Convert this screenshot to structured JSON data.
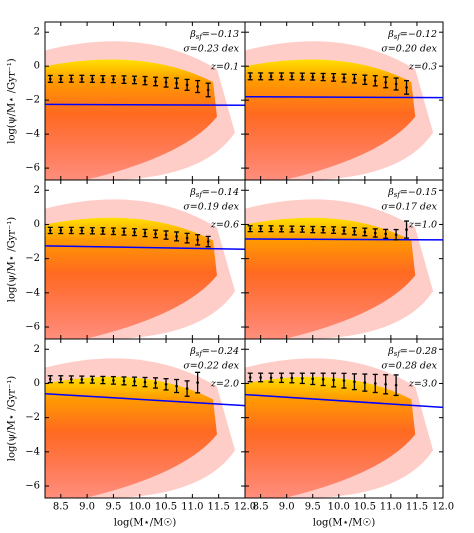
{
  "chart_data": [
    {
      "type": "errorbar",
      "ylabel": "log(ψ/M⋆ /Gyr⁻¹)",
      "beta": {
        "symbol": "β",
        "sub": "sf",
        "value": "=−0.13"
      },
      "sigma": "σ=0.23 dex",
      "z": "z=0.1",
      "xlim": [
        8.2,
        12.0
      ],
      "ylim": [
        -6.7,
        2.6
      ],
      "xticks": [
        8.5,
        {
          "value": 9,
          "label": "9.0"
        },
        9.5,
        {
          "value": 10,
          "label": "10.0"
        },
        10.5,
        {
          "value": 11,
          "label": "11.0"
        },
        11.5,
        {
          "value": 12,
          "label": "12.0"
        }
      ],
      "yticks": [
        {
          "value": -6,
          "label": "−6"
        },
        {
          "value": -4,
          "label": "−4"
        },
        {
          "value": -2,
          "label": "−2"
        },
        0,
        2
      ],
      "x": [
        8.3,
        8.5,
        8.7,
        8.9,
        9.1,
        9.3,
        9.5,
        9.7,
        9.9,
        10.1,
        10.3,
        10.5,
        10.7,
        10.9,
        11.1,
        11.3
      ],
      "values": [
        -0.75,
        -0.75,
        -0.74,
        -0.74,
        -0.75,
        -0.76,
        -0.77,
        -0.79,
        -0.81,
        -0.85,
        -0.9,
        -0.95,
        -1.0,
        -1.1,
        -1.2,
        -1.4
      ],
      "errors": [
        0.2,
        0.2,
        0.2,
        0.2,
        0.2,
        0.2,
        0.2,
        0.22,
        0.22,
        0.24,
        0.25,
        0.28,
        0.3,
        0.32,
        0.35,
        0.4
      ],
      "color": "#000000",
      "line": {
        "x": [
          8.2,
          12.0
        ],
        "y": [
          -2.25,
          -2.3
        ],
        "color": "#0000ff"
      }
    },
    {
      "type": "errorbar",
      "beta": {
        "symbol": "β",
        "sub": "sf",
        "value": "=−0.12"
      },
      "sigma": "σ=0.20 dex",
      "z": "z=0.3",
      "xlim": [
        8.2,
        12.0
      ],
      "ylim": [
        -6.7,
        2.6
      ],
      "xticks": [
        8.5,
        {
          "value": 9,
          "label": "9.0"
        },
        9.5,
        {
          "value": 10,
          "label": "10.0"
        },
        10.5,
        {
          "value": 11,
          "label": "11.0"
        },
        11.5,
        {
          "value": 12,
          "label": "12.0"
        }
      ],
      "yticks": [
        {
          "value": -6,
          "label": "−6"
        },
        {
          "value": -4,
          "label": "−4"
        },
        {
          "value": -2,
          "label": "−2"
        },
        0,
        2
      ],
      "x": [
        8.3,
        8.5,
        8.7,
        8.9,
        9.1,
        9.3,
        9.5,
        9.7,
        9.9,
        10.1,
        10.3,
        10.5,
        10.7,
        10.9,
        11.1,
        11.3
      ],
      "values": [
        -0.6,
        -0.6,
        -0.6,
        -0.6,
        -0.6,
        -0.61,
        -0.62,
        -0.64,
        -0.66,
        -0.7,
        -0.74,
        -0.8,
        -0.86,
        -0.95,
        -1.05,
        -1.25
      ],
      "errors": [
        0.2,
        0.2,
        0.2,
        0.2,
        0.2,
        0.2,
        0.2,
        0.21,
        0.22,
        0.23,
        0.25,
        0.27,
        0.3,
        0.32,
        0.35,
        0.4
      ],
      "color": "#000000",
      "line": {
        "x": [
          8.2,
          12.0
        ],
        "y": [
          -1.8,
          -1.85
        ],
        "color": "#0000ff"
      }
    },
    {
      "type": "errorbar",
      "ylabel": "log(ψ/M⋆ /Gyr⁻¹)",
      "beta": {
        "symbol": "β",
        "sub": "sf",
        "value": "=−0.14"
      },
      "sigma": "σ=0.19 dex",
      "z": "z=0.6",
      "xlim": [
        8.2,
        12.0
      ],
      "ylim": [
        -6.7,
        2.6
      ],
      "xticks": [
        8.5,
        {
          "value": 9,
          "label": "9.0"
        },
        9.5,
        {
          "value": 10,
          "label": "10.0"
        },
        10.5,
        {
          "value": 11,
          "label": "11.0"
        },
        11.5,
        {
          "value": 12,
          "label": "12.0"
        }
      ],
      "yticks": [
        {
          "value": -6,
          "label": "−6"
        },
        {
          "value": -4,
          "label": "−4"
        },
        {
          "value": -2,
          "label": "−2"
        },
        0,
        2
      ],
      "x": [
        8.3,
        8.5,
        8.7,
        8.9,
        9.1,
        9.3,
        9.5,
        9.7,
        9.9,
        10.1,
        10.3,
        10.5,
        10.7,
        10.9,
        11.1,
        11.3
      ],
      "values": [
        -0.35,
        -0.35,
        -0.35,
        -0.36,
        -0.37,
        -0.38,
        -0.4,
        -0.42,
        -0.45,
        -0.5,
        -0.55,
        -0.62,
        -0.7,
        -0.8,
        -0.9,
        -1.0
      ],
      "errors": [
        0.18,
        0.18,
        0.18,
        0.18,
        0.18,
        0.19,
        0.19,
        0.2,
        0.2,
        0.21,
        0.22,
        0.24,
        0.26,
        0.28,
        0.3,
        0.3
      ],
      "color": "#000000",
      "line": {
        "x": [
          8.2,
          12.0
        ],
        "y": [
          -1.25,
          -1.45
        ],
        "color": "#0000ff"
      }
    },
    {
      "type": "errorbar",
      "beta": {
        "symbol": "β",
        "sub": "sf",
        "value": "=−0.15"
      },
      "sigma": "σ=0.17 dex",
      "z": "z=1.0",
      "xlim": [
        8.2,
        12.0
      ],
      "ylim": [
        -6.7,
        2.6
      ],
      "xticks": [
        8.5,
        {
          "value": 9,
          "label": "9.0"
        },
        9.5,
        {
          "value": 10,
          "label": "10.0"
        },
        10.5,
        {
          "value": 11,
          "label": "11.0"
        },
        11.5,
        {
          "value": 12,
          "label": "12.0"
        }
      ],
      "yticks": [
        {
          "value": -6,
          "label": "−6"
        },
        {
          "value": -4,
          "label": "−4"
        },
        {
          "value": -2,
          "label": "−2"
        },
        0,
        2
      ],
      "x": [
        8.3,
        8.5,
        8.7,
        8.9,
        9.1,
        9.3,
        9.5,
        9.7,
        9.9,
        10.1,
        10.3,
        10.5,
        10.7,
        10.9,
        11.1,
        11.3
      ],
      "values": [
        -0.25,
        -0.25,
        -0.25,
        -0.26,
        -0.27,
        -0.28,
        -0.3,
        -0.31,
        -0.33,
        -0.36,
        -0.4,
        -0.44,
        -0.5,
        -0.55,
        -0.6,
        -0.3
      ],
      "errors": [
        0.17,
        0.17,
        0.17,
        0.17,
        0.17,
        0.17,
        0.18,
        0.18,
        0.19,
        0.2,
        0.21,
        0.22,
        0.24,
        0.26,
        0.3,
        0.5
      ],
      "color": "#000000",
      "line": {
        "x": [
          8.2,
          12.0
        ],
        "y": [
          -0.85,
          -0.9
        ],
        "color": "#0000ff"
      }
    },
    {
      "type": "errorbar",
      "ylabel": "log(ψ/M⋆ /Gyr⁻¹)",
      "xlabel": "log(M⋆/M☉)",
      "beta": {
        "symbol": "β",
        "sub": "sf",
        "value": "=−0.24"
      },
      "sigma": "σ=0.22 dex",
      "z": "z=2.0",
      "xlim": [
        8.2,
        12.0
      ],
      "ylim": [
        -6.7,
        2.6
      ],
      "xticks": [
        8.5,
        {
          "value": 9,
          "label": "9.0"
        },
        9.5,
        {
          "value": 10,
          "label": "10.0"
        },
        10.5,
        {
          "value": 11,
          "label": "11.0"
        },
        11.5,
        {
          "value": 12,
          "label": "12.0"
        }
      ],
      "yticks": [
        {
          "value": -6,
          "label": "−6"
        },
        {
          "value": -4,
          "label": "−4"
        },
        {
          "value": -2,
          "label": "−2"
        },
        0,
        2
      ],
      "x": [
        8.3,
        8.5,
        8.7,
        8.9,
        9.1,
        9.3,
        9.5,
        9.7,
        9.9,
        10.1,
        10.3,
        10.5,
        10.7,
        10.9,
        11.1
      ],
      "values": [
        0.25,
        0.25,
        0.24,
        0.23,
        0.22,
        0.2,
        0.18,
        0.15,
        0.12,
        0.08,
        0.03,
        -0.05,
        -0.15,
        -0.3,
        0.05
      ],
      "errors": [
        0.2,
        0.2,
        0.2,
        0.2,
        0.2,
        0.21,
        0.22,
        0.23,
        0.25,
        0.27,
        0.3,
        0.33,
        0.38,
        0.45,
        0.6
      ],
      "color": "#000000",
      "line": {
        "x": [
          8.2,
          12.0
        ],
        "y": [
          -0.6,
          -1.3
        ],
        "color": "#0000ff"
      }
    },
    {
      "type": "errorbar",
      "xlabel": "log(M⋆/M☉)",
      "beta": {
        "symbol": "β",
        "sub": "sf",
        "value": "=−0.28"
      },
      "sigma": "σ=0.28 dex",
      "z": "z=3.0",
      "xlim": [
        8.2,
        12.0
      ],
      "ylim": [
        -6.7,
        2.6
      ],
      "xticks": [
        8.5,
        {
          "value": 9,
          "label": "9.0"
        },
        9.5,
        {
          "value": 10,
          "label": "10.0"
        },
        10.5,
        {
          "value": 11,
          "label": "11.0"
        },
        11.5,
        {
          "value": 12,
          "label": "12.0"
        }
      ],
      "yticks": [
        {
          "value": -6,
          "label": "−6"
        },
        {
          "value": -4,
          "label": "−4"
        },
        {
          "value": -2,
          "label": "−2"
        },
        0,
        2
      ],
      "x": [
        8.3,
        8.5,
        8.7,
        8.9,
        9.1,
        9.3,
        9.5,
        9.7,
        9.9,
        10.1,
        10.3,
        10.5,
        10.7,
        10.9,
        11.1
      ],
      "values": [
        0.35,
        0.35,
        0.34,
        0.33,
        0.32,
        0.3,
        0.27,
        0.24,
        0.2,
        0.16,
        0.1,
        0.05,
        0.0,
        -0.05,
        -0.1
      ],
      "errors": [
        0.25,
        0.25,
        0.26,
        0.27,
        0.28,
        0.3,
        0.33,
        0.36,
        0.4,
        0.43,
        0.46,
        0.5,
        0.53,
        0.56,
        0.6
      ],
      "color": "#000000",
      "line": {
        "x": [
          8.2,
          12.0
        ],
        "y": [
          -0.65,
          -1.4
        ],
        "color": "#0000ff"
      }
    }
  ]
}
